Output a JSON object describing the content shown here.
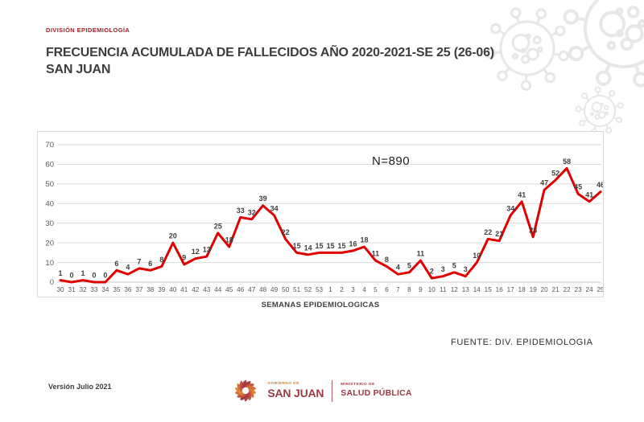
{
  "header": {
    "division": "DIVISIÓN EPIDEMIOLOGÍA",
    "title": "FRECUENCIA ACUMULADA DE FALLECIDOS AÑO 2020-2021-SE 25 (26-06) SAN JUAN"
  },
  "chart_data": {
    "type": "line",
    "title": "",
    "annotation": "N=890",
    "xlabel": "SEMANAS EPIDEMIOLOGICAS",
    "ylabel": "",
    "ylim": [
      0,
      70
    ],
    "ytick_step": 10,
    "yticks": [
      0,
      10,
      20,
      30,
      40,
      50,
      60,
      70
    ],
    "grid": true,
    "legend": "none",
    "line_color": "#e00000",
    "grid_color": "#dadada",
    "axis_text_color": "#595959",
    "data_label_color": "#3f3f3f",
    "categories": [
      "30",
      "31",
      "32",
      "33",
      "34",
      "35",
      "36",
      "37",
      "38",
      "39",
      "40",
      "41",
      "42",
      "43",
      "44",
      "45",
      "46",
      "47",
      "48",
      "49",
      "50",
      "51",
      "52",
      "53",
      "1",
      "2",
      "3",
      "4",
      "5",
      "6",
      "7",
      "8",
      "9",
      "10",
      "11",
      "12",
      "13",
      "14",
      "15",
      "16",
      "17",
      "18",
      "19",
      "20",
      "21",
      "22",
      "23",
      "24",
      "25"
    ],
    "values": [
      1,
      0,
      1,
      0,
      0,
      6,
      4,
      7,
      6,
      8,
      20,
      9,
      12,
      13,
      25,
      18,
      33,
      32,
      39,
      34,
      22,
      15,
      14,
      15,
      15,
      15,
      16,
      18,
      11,
      8,
      4,
      5,
      11,
      2,
      3,
      5,
      3,
      10,
      22,
      21,
      34,
      41,
      23,
      47,
      52,
      58,
      45,
      41,
      46
    ]
  },
  "source": "FUENTE: DIV. EPIDEMIOLOGIA",
  "footer": {
    "version": "Versión Julio 2021",
    "logo": {
      "gobierno_small": "GOBIERNO DE",
      "gobierno_name": "SAN JUAN",
      "ministerio_small": "MINISTERIO DE",
      "ministerio_name": "SALUD PÚBLICA"
    }
  },
  "colors": {
    "accent_red": "#a6191f",
    "title_gray": "#3d3d3d",
    "logo_darkred": "#9c3a43",
    "logo_orange": "#cf7d2f",
    "decor_gray": "#e7e7e7"
  }
}
